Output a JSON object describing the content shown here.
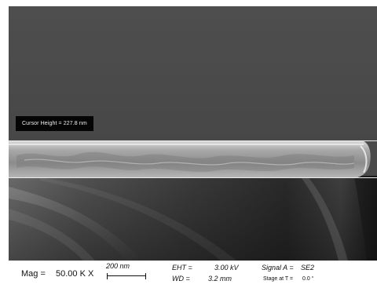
{
  "image": {
    "cursor_label": "Cursor Height = 227.8 nm"
  },
  "databar": {
    "mag_label": "Mag =",
    "mag_value": "50.00 K X",
    "scale_label": "200 nm",
    "eht_label": "EHT =",
    "eht_value": "3.00 kV",
    "wd_label": "WD =",
    "wd_value": "3.2 mm",
    "signal_label": "Signal A =",
    "signal_value": "SE2",
    "stage_label": "Stage at T =",
    "stage_value": "0.0 °"
  },
  "colors": {
    "background_top": "#4b4b4b",
    "film_layer": "#9a9a9a",
    "cursor_lines": "#e8e8e8",
    "label_bg": "#050505"
  }
}
